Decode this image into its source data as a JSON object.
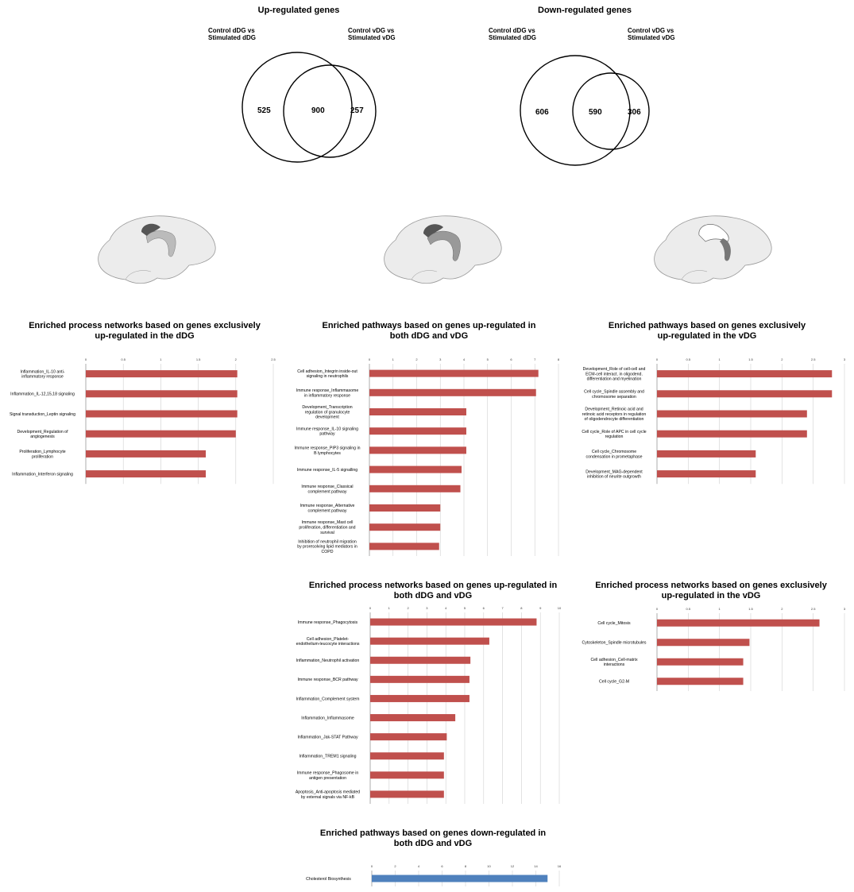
{
  "venn": [
    {
      "title": "Up-regulated genes",
      "set_a": "Control dDG vs\nStimulated dDG",
      "set_b": "Control vDG vs\nStimulated vDG",
      "only_a": "525",
      "both": "900",
      "only_b": "257"
    },
    {
      "title": "Down-regulated genes",
      "set_a": "Control dDG vs\nStimulated dDG",
      "set_b": "Control vDG vs\nStimulated vDG",
      "only_a": "606",
      "both": "590",
      "only_b": "306"
    }
  ],
  "brain_highlights": [
    {
      "highlight": "dDG",
      "dorsal_color": "#555555",
      "ventral_color": "#bbbbbb"
    },
    {
      "highlight": "both",
      "dorsal_color": "#555555",
      "ventral_color": "#999999"
    },
    {
      "highlight": "vDG",
      "dorsal_color": "#ffffff",
      "ventral_color": "#777777"
    }
  ],
  "chart_data": [
    {
      "type": "bar",
      "orientation": "horizontal",
      "title": "Enriched process networks based on genes exclusively\nup-regulated in the dDG",
      "color": "#c0504d",
      "xlim": [
        0,
        2.5
      ],
      "ticks": [
        "0",
        "0.5",
        "1",
        "1.5",
        "2",
        "2.5"
      ],
      "categories": [
        "Inflammation_IL-10 anti-\ninflammatory response",
        "Inflammation_IL-12,15,18 signaling",
        "Signal transduction_Leptin signaling",
        "Development_Regulation of\nangiogenesis",
        "Proliferation_Lymphocyte\nproliferation",
        "Inflammation_Interferon signaling"
      ],
      "values": [
        2.02,
        2.02,
        2.02,
        2.0,
        1.6,
        1.6
      ]
    },
    {
      "type": "bar",
      "orientation": "horizontal",
      "title": "Enriched pathways based on genes up-regulated in\nboth dDG and vDG",
      "color": "#c0504d",
      "xlim": [
        0,
        8
      ],
      "ticks": [
        "0",
        "1",
        "2",
        "3",
        "4",
        "5",
        "6",
        "7",
        "8"
      ],
      "categories": [
        "Cell adhesion_Integrin inside-out\nsignaling in neutrophils",
        "Immune response_Inflammasome\nin inflammatory response",
        "Development_Transcription\nregulation of granulocyte\ndevelopment",
        "Immune response_IL-10 signaling\npathway",
        "Immune response_PIP3 signaling in\nB lymphocytes",
        "Immune response_IL-5 signalling",
        "Immune response_Classical\ncomplement pathway",
        "Immune response_Alternative\ncomplement pathway",
        "Immune response_Mast cell\nproliferation, differentiation and\nsurvival",
        "Inhibition of neutrophil migration\nby proresolving lipid mediators in\nCOPD"
      ],
      "values": [
        7.15,
        7.05,
        4.1,
        4.1,
        4.1,
        3.9,
        3.85,
        3.0,
        3.0,
        2.95
      ]
    },
    {
      "type": "bar",
      "orientation": "horizontal",
      "title": "Enriched pathways based on genes exclusively\nup-regulated in the vDG",
      "color": "#c0504d",
      "xlim": [
        0,
        3
      ],
      "ticks": [
        "0",
        "0.5",
        "1",
        "1.5",
        "2",
        "2.5",
        "3"
      ],
      "categories": [
        "Development_Role of cell-cell and\nECM-cell interact. in oligodend.\ndifferentiation and myelination",
        "Cell cycle_Spindle assembly and\nchromosome separation",
        "Development_Retinoic acid and\nretinoic acid receptors in regulation\nof oligodendrocyte differentiation",
        "Cell cycle_Role of APC in cell cycle\nregulation",
        "Cell cycle_Chromosome\ncondensation in prometaphase",
        "Development_MAG-dependent\ninhibition of neurite outgrowth"
      ],
      "values": [
        2.8,
        2.8,
        2.4,
        2.4,
        1.58,
        1.58
      ]
    },
    {
      "type": "bar",
      "orientation": "horizontal",
      "title": "Enriched process networks based on genes up-regulated in\nboth dDG and vDG",
      "color": "#c0504d",
      "xlim": [
        0,
        10
      ],
      "ticks": [
        "0",
        "1",
        "2",
        "3",
        "4",
        "5",
        "6",
        "7",
        "8",
        "9",
        "10"
      ],
      "categories": [
        "Immune response_Phagocytosis",
        "Cell adhesion_Platelet-\nendothelium-leucocyte interactions",
        "Inflammation_Neutrophil activation",
        "Immune response_BCR pathway",
        "Inflammation_Complement system",
        "Inflammation_Inflammasome",
        "Inflammation_Jak-STAT Pathway",
        "Inflammation_TREM1 signaling",
        "Immune response_Phagosome in\nantigen presentation",
        "Apoptosis_Anti-apoptosis mediated\nby external signals via NF-kB"
      ],
      "values": [
        8.8,
        6.3,
        5.3,
        5.25,
        5.25,
        4.5,
        4.05,
        3.9,
        3.9,
        3.9
      ]
    },
    {
      "type": "bar",
      "orientation": "horizontal",
      "title": "Enriched process networks based on genes exclusively\nup-regulated in the vDG",
      "color": "#c0504d",
      "xlim": [
        0,
        3
      ],
      "ticks": [
        "0",
        "0.5",
        "1",
        "1.5",
        "2",
        "2.5",
        "3"
      ],
      "categories": [
        "Cell cycle_Mitosis",
        "Cytoskeleton_Spindle microtubules",
        "Cell adhesion_Cell-matrix\ninteractions",
        "Cell cycle_G2-M"
      ],
      "values": [
        2.6,
        1.48,
        1.38,
        1.38
      ]
    },
    {
      "type": "bar",
      "orientation": "horizontal",
      "title": "Enriched pathways based on genes down-regulated in\nboth dDG and vDG",
      "color": "#4f81bd",
      "xlim": [
        0,
        16
      ],
      "ticks": [
        "0",
        "2",
        "4",
        "6",
        "8",
        "10",
        "12",
        "14",
        "16"
      ],
      "categories": [
        "Cholesterol Biosynthesis"
      ],
      "values": [
        15.0
      ]
    }
  ]
}
